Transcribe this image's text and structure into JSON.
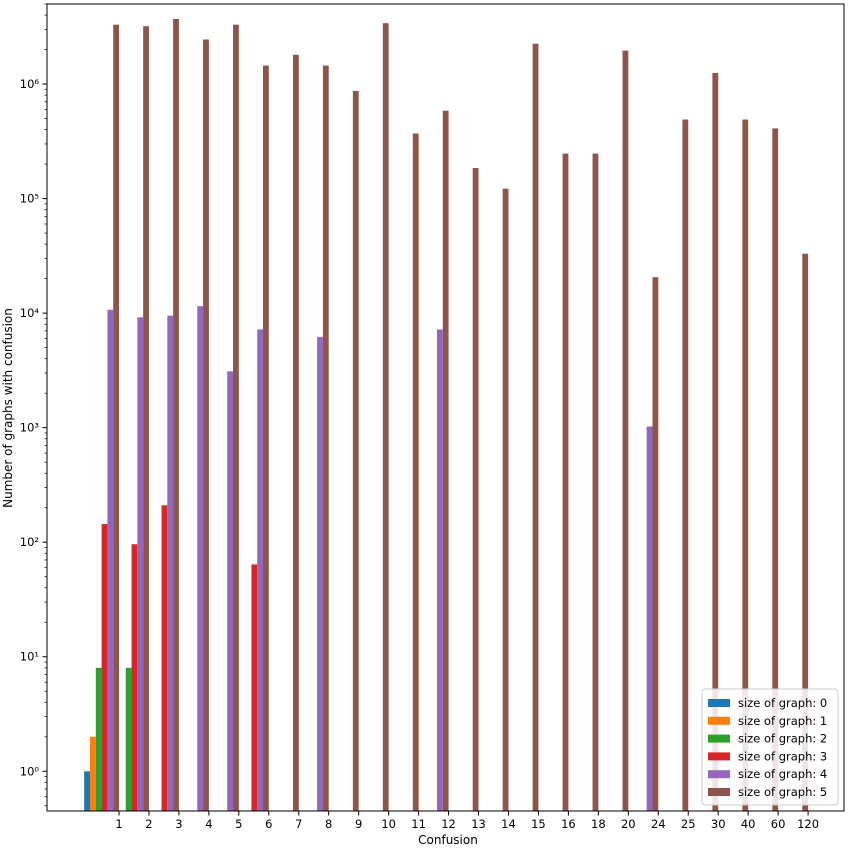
{
  "chart_data": {
    "type": "bar",
    "scale": "log",
    "xlabel": "Confusion",
    "ylabel": "Number of graphs with confusion",
    "ylim": [
      0.45,
      5000000
    ],
    "y_ticks": [
      {
        "value": 1,
        "label": "10⁰"
      },
      {
        "value": 10,
        "label": "10¹"
      },
      {
        "value": 100,
        "label": "10²"
      },
      {
        "value": 1000,
        "label": "10³"
      },
      {
        "value": 10000,
        "label": "10⁴"
      },
      {
        "value": 100000,
        "label": "10⁵"
      },
      {
        "value": 1000000,
        "label": "10⁶"
      }
    ],
    "categories": [
      "1",
      "2",
      "3",
      "4",
      "5",
      "6",
      "7",
      "8",
      "9",
      "10",
      "11",
      "12",
      "13",
      "14",
      "15",
      "16",
      "18",
      "20",
      "24",
      "25",
      "30",
      "40",
      "60",
      "120"
    ],
    "legend_position": "lower-right",
    "series": [
      {
        "name": "size of graph: 0",
        "color": "#1f77b4",
        "values": [
          1,
          null,
          null,
          null,
          null,
          null,
          null,
          null,
          null,
          null,
          null,
          null,
          null,
          null,
          null,
          null,
          null,
          null,
          null,
          null,
          null,
          null,
          null,
          null
        ]
      },
      {
        "name": "size of graph: 1",
        "color": "#ff7f0e",
        "values": [
          2,
          null,
          null,
          null,
          null,
          null,
          null,
          null,
          null,
          null,
          null,
          null,
          null,
          null,
          null,
          null,
          null,
          null,
          null,
          null,
          null,
          null,
          null,
          null
        ]
      },
      {
        "name": "size of graph: 2",
        "color": "#2ca02c",
        "values": [
          8,
          8,
          null,
          null,
          null,
          null,
          null,
          null,
          null,
          null,
          null,
          null,
          null,
          null,
          null,
          null,
          null,
          null,
          null,
          null,
          null,
          null,
          null,
          null
        ]
      },
      {
        "name": "size of graph: 3",
        "color": "#d62728",
        "values": [
          144,
          96,
          210,
          null,
          null,
          64,
          null,
          null,
          null,
          null,
          null,
          null,
          null,
          null,
          null,
          null,
          null,
          null,
          null,
          null,
          null,
          null,
          null,
          null
        ]
      },
      {
        "name": "size of graph: 4",
        "color": "#9467bd",
        "values": [
          10700,
          9200,
          9500,
          11500,
          3100,
          7200,
          null,
          6200,
          null,
          null,
          null,
          7200,
          null,
          null,
          null,
          null,
          null,
          null,
          1024,
          null,
          null,
          null,
          null,
          null
        ]
      },
      {
        "name": "size of graph: 5",
        "color": "#8c564b",
        "values": [
          3300000,
          3200000,
          3700000,
          2450000,
          3300000,
          1450000,
          1800000,
          1450000,
          870000,
          3400000,
          370000,
          585000,
          185000,
          122000,
          2250000,
          247000,
          247000,
          1960000,
          20600,
          490000,
          1250000,
          490000,
          410000,
          33000
        ]
      }
    ]
  }
}
